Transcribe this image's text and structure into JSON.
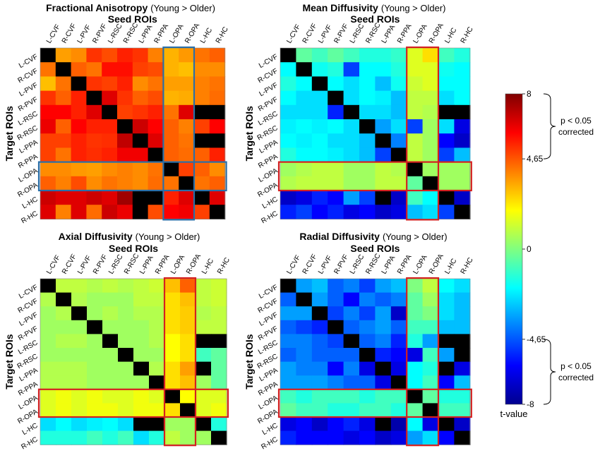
{
  "chart_data": [
    {
      "type": "heatmap",
      "title_bold": "Fractional Anisotropy",
      "title_suffix": "(Young > Older)",
      "xlabel": "Seed ROIs",
      "ylabel": "Target ROIs",
      "x_categories": [
        "L-CVF",
        "R-CVF",
        "L-PVF",
        "R-PVF",
        "L-RSC",
        "R-RSC",
        "L-PPA",
        "R-PPA",
        "L-OPA",
        "R-OPA",
        "L-HC",
        "R-HC"
      ],
      "y_categories": [
        "L-CVF",
        "R-CVF",
        "L-PVF",
        "R-PVF",
        "L-RSC",
        "R-RSC",
        "L-PPA",
        "R-PPA",
        "L-OPA",
        "R-OPA",
        "L-HC",
        "R-HC"
      ],
      "highlight_color": "#2a6fa8",
      "highlight_rows": [
        "L-OPA",
        "R-OPA"
      ],
      "highlight_cols": [
        "L-OPA",
        "R-OPA"
      ],
      "values": [
        [
          null,
          3.5,
          3.8,
          5.2,
          4.8,
          5.5,
          5.2,
          4.0,
          3.2,
          3.6,
          4.2,
          4.5
        ],
        [
          4.2,
          null,
          4.5,
          4.2,
          5.8,
          5.8,
          5.0,
          4.8,
          3.2,
          3.0,
          3.8,
          3.8
        ],
        [
          3.0,
          4.2,
          null,
          5.2,
          5.0,
          5.5,
          3.8,
          4.2,
          3.5,
          3.5,
          4.0,
          4.2
        ],
        [
          5.2,
          4.5,
          5.5,
          null,
          6.5,
          5.2,
          4.5,
          4.8,
          3.2,
          3.3,
          4.0,
          4.3
        ],
        [
          6.0,
          6.0,
          5.5,
          6.5,
          null,
          5.0,
          5.2,
          5.5,
          4.2,
          6.5,
          null,
          null
        ],
        [
          6.3,
          4.5,
          6.0,
          5.5,
          5.5,
          null,
          6.8,
          6.0,
          4.5,
          4.0,
          5.0,
          6.0
        ],
        [
          5.0,
          5.0,
          5.5,
          5.2,
          5.3,
          7.0,
          null,
          6.5,
          4.5,
          4.2,
          null,
          null
        ],
        [
          5.0,
          4.2,
          5.5,
          5.3,
          5.5,
          6.2,
          6.2,
          null,
          4.5,
          4.3,
          4.5,
          5.5
        ],
        [
          3.8,
          3.8,
          3.6,
          3.5,
          3.8,
          4.0,
          3.8,
          4.2,
          null,
          5.0,
          4.5,
          3.8
        ],
        [
          4.5,
          4.0,
          4.8,
          3.8,
          4.2,
          4.0,
          3.8,
          4.3,
          4.2,
          null,
          4.2,
          4.5
        ],
        [
          6.8,
          6.5,
          6.5,
          6.8,
          6.5,
          7.5,
          null,
          null,
          5.5,
          6.5,
          null,
          6.5
        ],
        [
          6.5,
          4.0,
          6.5,
          4.3,
          6.8,
          6.3,
          null,
          4.8,
          6.0,
          6.2,
          5.0,
          null
        ]
      ]
    },
    {
      "type": "heatmap",
      "title_bold": "Mean Diffusivity",
      "title_suffix": "(Young > Older)",
      "xlabel": "Seed ROIs",
      "ylabel": "Target ROIs",
      "x_categories": [
        "L-CVF",
        "R-CVF",
        "L-PVF",
        "R-PVF",
        "L-RSC",
        "R-RSC",
        "L-PPA",
        "R-PPA",
        "L-OPA",
        "R-OPA",
        "L-HC",
        "R-HC"
      ],
      "y_categories": [
        "L-CVF",
        "R-CVF",
        "L-PVF",
        "R-PVF",
        "L-RSC",
        "R-RSC",
        "L-PPA",
        "R-PPA",
        "L-OPA",
        "R-OPA",
        "L-HC",
        "R-HC"
      ],
      "highlight_color": "#d42020",
      "highlight_rows": [
        "L-OPA",
        "R-OPA"
      ],
      "highlight_cols": [
        "L-OPA",
        "R-OPA"
      ],
      "values": [
        [
          null,
          -0.5,
          -1.0,
          -0.5,
          -1.0,
          -1.5,
          -1.5,
          -1.2,
          1.5,
          2.5,
          -1.0,
          -1.5
        ],
        [
          -2.0,
          null,
          -1.8,
          -1.5,
          -5.0,
          -2.0,
          -2.0,
          -1.5,
          1.5,
          1.5,
          -1.8,
          -2.0
        ],
        [
          -1.5,
          -2.0,
          null,
          -2.0,
          -2.5,
          -2.0,
          -3.0,
          -1.8,
          1.2,
          1.5,
          -2.0,
          -2.0
        ],
        [
          -2.0,
          -2.5,
          -2.5,
          null,
          -2.5,
          -2.0,
          -2.2,
          -3.0,
          1.0,
          1.0,
          -2.5,
          -2.0
        ],
        [
          -2.5,
          -2.5,
          -2.5,
          -5.5,
          null,
          -2.5,
          -2.5,
          -3.0,
          1.0,
          0.8,
          null,
          null
        ],
        [
          -2.2,
          -2.0,
          -2.2,
          -2.0,
          -2.5,
          null,
          -3.5,
          -2.5,
          -5.0,
          0.5,
          -2.5,
          -6.5
        ],
        [
          -2.0,
          -2.2,
          -2.0,
          -2.5,
          -2.5,
          -3.0,
          null,
          -4.0,
          1.0,
          0.5,
          -6.0,
          -7.0
        ],
        [
          -1.5,
          -2.0,
          -2.0,
          -2.2,
          -2.5,
          -3.0,
          -5.0,
          null,
          1.0,
          0.5,
          -5.0,
          -3.0
        ],
        [
          0.5,
          0.8,
          1.0,
          1.0,
          0.5,
          0.5,
          1.0,
          0.8,
          null,
          0.5,
          0.5,
          0.5
        ],
        [
          0.8,
          1.0,
          1.0,
          1.0,
          0.5,
          0.5,
          1.0,
          1.0,
          -0.5,
          null,
          0.5,
          0.5
        ],
        [
          -7.0,
          -6.5,
          -5.5,
          -6.0,
          -3.5,
          -5.0,
          null,
          -7.0,
          -1.0,
          -2.0,
          null,
          -7.0
        ],
        [
          -5.5,
          -5.0,
          -6.0,
          -5.5,
          -6.5,
          -6.0,
          -7.0,
          -6.5,
          -3.0,
          -2.5,
          -5.0,
          null
        ]
      ]
    },
    {
      "type": "heatmap",
      "title_bold": "Axial Diffusivity",
      "title_suffix": "(Young > Older)",
      "xlabel": "Seed ROIs",
      "ylabel": "Target ROIs",
      "x_categories": [
        "L-CVF",
        "R-CVF",
        "L-PVF",
        "R-PVF",
        "L-RSC",
        "R-RSC",
        "L-PPA",
        "R-PPA",
        "L-OPA",
        "R-OPA",
        "L-HC",
        "R-HC"
      ],
      "y_categories": [
        "L-CVF",
        "R-CVF",
        "L-PVF",
        "R-PVF",
        "L-RSC",
        "R-RSC",
        "L-PPA",
        "R-PPA",
        "L-OPA",
        "R-OPA",
        "L-HC",
        "R-HC"
      ],
      "highlight_color": "#d42020",
      "highlight_rows": [
        "L-OPA",
        "R-OPA"
      ],
      "highlight_cols": [
        "L-OPA",
        "R-OPA"
      ],
      "values": [
        [
          null,
          1.0,
          1.0,
          0.8,
          1.0,
          0.8,
          1.0,
          1.2,
          3.0,
          4.5,
          1.0,
          1.2
        ],
        [
          0.8,
          null,
          0.8,
          0.5,
          0.5,
          0.5,
          1.0,
          1.0,
          2.5,
          3.0,
          1.0,
          1.2
        ],
        [
          0.5,
          0.8,
          null,
          0.5,
          0.8,
          0.5,
          0.8,
          0.8,
          2.5,
          2.8,
          0.8,
          1.0
        ],
        [
          0.5,
          0.5,
          0.5,
          null,
          0.5,
          0.5,
          0.5,
          0.8,
          2.5,
          2.8,
          1.0,
          1.0
        ],
        [
          0.5,
          0.8,
          0.8,
          0.5,
          null,
          0.5,
          0.5,
          0.8,
          2.0,
          2.5,
          null,
          null
        ],
        [
          0.5,
          0.5,
          0.5,
          0.5,
          0.5,
          null,
          0.5,
          0.5,
          2.0,
          2.5,
          -1.0,
          -0.5
        ],
        [
          0.8,
          0.8,
          0.8,
          0.5,
          0.5,
          0.5,
          null,
          0.8,
          2.5,
          3.5,
          null,
          -0.5
        ],
        [
          0.8,
          0.8,
          0.8,
          0.5,
          0.5,
          0.5,
          0.5,
          null,
          2.5,
          3.0,
          0.5,
          -0.5
        ],
        [
          1.5,
          1.8,
          1.5,
          1.8,
          1.5,
          1.5,
          1.8,
          1.5,
          null,
          2.0,
          1.5,
          1.5
        ],
        [
          1.5,
          1.8,
          1.5,
          1.8,
          1.8,
          1.5,
          1.8,
          1.8,
          2.5,
          null,
          1.5,
          1.8
        ],
        [
          -2.5,
          -2.0,
          -2.5,
          -2.2,
          -2.0,
          -2.5,
          null,
          null,
          0.5,
          0.5,
          null,
          -1.5
        ],
        [
          -1.5,
          -1.5,
          -1.5,
          -1.0,
          -1.5,
          -1.0,
          -2.5,
          -1.5,
          1.0,
          0.5,
          0.5,
          null
        ]
      ]
    },
    {
      "type": "heatmap",
      "title_bold": "Radial Diffusivity",
      "title_suffix": "(Young > Older)",
      "xlabel": "Seed ROIs",
      "ylabel": "Target ROIs",
      "x_categories": [
        "L-CVF",
        "R-CVF",
        "L-PVF",
        "R-PVF",
        "L-RSC",
        "R-RSC",
        "L-PPA",
        "R-PPA",
        "L-OPA",
        "R-OPA",
        "L-HC",
        "R-HC"
      ],
      "y_categories": [
        "L-CVF",
        "R-CVF",
        "L-PVF",
        "R-PVF",
        "L-RSC",
        "R-RSC",
        "L-PPA",
        "R-PPA",
        "L-OPA",
        "R-OPA",
        "L-HC",
        "R-HC"
      ],
      "highlight_color": "#d42020",
      "highlight_rows": [
        "L-OPA",
        "R-OPA"
      ],
      "highlight_cols": [
        "L-OPA",
        "R-OPA"
      ],
      "values": [
        [
          null,
          -3.5,
          -3.0,
          -4.5,
          -4.0,
          -5.0,
          -3.5,
          -3.0,
          0.0,
          1.0,
          -2.0,
          -2.5
        ],
        [
          -4.5,
          null,
          -3.5,
          -4.5,
          -6.0,
          -4.0,
          -4.5,
          -4.0,
          -0.5,
          0.5,
          -2.5,
          -3.0
        ],
        [
          -3.5,
          -3.5,
          null,
          -5.0,
          -4.0,
          -5.0,
          -3.5,
          -7.0,
          -0.5,
          0.0,
          -2.5,
          -3.0
        ],
        [
          -4.5,
          -5.0,
          -5.5,
          null,
          -4.5,
          -4.0,
          -3.5,
          -4.5,
          -1.0,
          -1.0,
          -3.0,
          -3.0
        ],
        [
          -4.0,
          -4.0,
          -4.5,
          -5.0,
          null,
          -4.5,
          -4.0,
          -5.5,
          -1.5,
          -3.5,
          null,
          null
        ],
        [
          -4.5,
          -4.0,
          -4.5,
          -4.5,
          -4.5,
          null,
          -5.5,
          -6.0,
          -6.5,
          -1.0,
          -3.5,
          null
        ],
        [
          -3.5,
          -4.0,
          -4.0,
          -6.0,
          -4.0,
          -6.5,
          null,
          -6.5,
          -2.0,
          -1.5,
          null,
          -6.5
        ],
        [
          -3.5,
          -3.5,
          -3.5,
          -4.0,
          -4.5,
          -4.5,
          -6.5,
          null,
          -2.0,
          -1.0,
          -6.0,
          -3.0
        ],
        [
          -1.0,
          -1.5,
          -1.0,
          -1.0,
          -1.0,
          -1.5,
          -1.0,
          -1.0,
          null,
          -0.5,
          -1.5,
          -1.5
        ],
        [
          -0.5,
          -1.0,
          -1.0,
          -1.5,
          -1.5,
          -1.0,
          -1.0,
          -1.5,
          -0.5,
          null,
          -1.0,
          -1.0
        ],
        [
          -6.5,
          -6.0,
          -7.0,
          -6.0,
          -5.5,
          -6.5,
          null,
          -7.5,
          -2.0,
          -6.5,
          null,
          -7.0
        ],
        [
          -5.5,
          -6.0,
          -6.0,
          -6.0,
          -6.5,
          -6.0,
          -7.0,
          -6.5,
          -3.5,
          -2.5,
          -6.0,
          null
        ]
      ]
    }
  ],
  "colorbar": {
    "min": -8,
    "max": 8,
    "ticks": [
      {
        "value": 8,
        "label": "8"
      },
      {
        "value": 4.65,
        "label": "4,65"
      },
      {
        "value": 0,
        "label": "0"
      },
      {
        "value": -4.65,
        "label": "-4,65"
      },
      {
        "value": -8,
        "label": "-8"
      }
    ],
    "label": "t-value",
    "upper_note_line1": "p < 0.05",
    "upper_note_line2": "corrected",
    "lower_note_line1": "p < 0.05",
    "lower_note_line2": "corrected",
    "diagonal_color": "#000000"
  }
}
